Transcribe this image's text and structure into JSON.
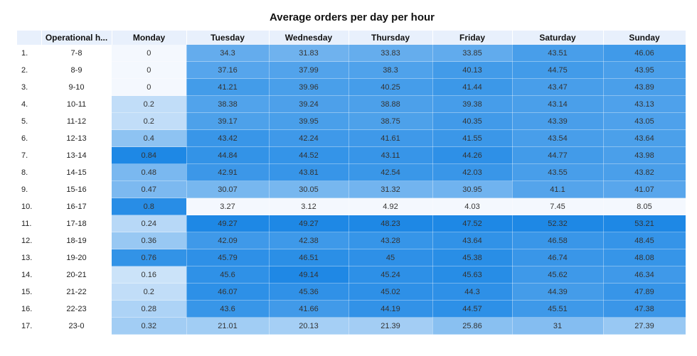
{
  "title": "Average orders per day per hour",
  "chart_data": {
    "type": "heatmap",
    "title": "Average orders per day per hour",
    "index_column": "",
    "row_label_column": "Operational h...",
    "columns": [
      "Monday",
      "Tuesday",
      "Wednesday",
      "Thursday",
      "Friday",
      "Saturday",
      "Sunday"
    ],
    "rows": [
      {
        "index": "1.",
        "hour": "7-8",
        "values": [
          "0",
          "34.3",
          "31.83",
          "33.83",
          "33.85",
          "43.51",
          "46.06"
        ]
      },
      {
        "index": "2.",
        "hour": "8-9",
        "values": [
          "0",
          "37.16",
          "37.99",
          "38.3",
          "40.13",
          "44.75",
          "43.95"
        ]
      },
      {
        "index": "3.",
        "hour": "9-10",
        "values": [
          "0",
          "41.21",
          "39.96",
          "40.25",
          "41.44",
          "43.47",
          "43.89"
        ]
      },
      {
        "index": "4.",
        "hour": "10-11",
        "values": [
          "0.2",
          "38.38",
          "39.24",
          "38.88",
          "39.38",
          "43.14",
          "43.13"
        ]
      },
      {
        "index": "5.",
        "hour": "11-12",
        "values": [
          "0.2",
          "39.17",
          "39.95",
          "38.75",
          "40.35",
          "43.39",
          "43.05"
        ]
      },
      {
        "index": "6.",
        "hour": "12-13",
        "values": [
          "0.4",
          "43.42",
          "42.24",
          "41.61",
          "41.55",
          "43.54",
          "43.64"
        ]
      },
      {
        "index": "7.",
        "hour": "13-14",
        "values": [
          "0.84",
          "44.84",
          "44.52",
          "43.11",
          "44.26",
          "44.77",
          "43.98"
        ]
      },
      {
        "index": "8.",
        "hour": "14-15",
        "values": [
          "0.48",
          "42.91",
          "43.81",
          "42.54",
          "42.03",
          "43.55",
          "43.82"
        ]
      },
      {
        "index": "9.",
        "hour": "15-16",
        "values": [
          "0.47",
          "30.07",
          "30.05",
          "31.32",
          "30.95",
          "41.1",
          "41.07"
        ]
      },
      {
        "index": "10.",
        "hour": "16-17",
        "values": [
          "0.8",
          "3.27",
          "3.12",
          "4.92",
          "4.03",
          "7.45",
          "8.05"
        ]
      },
      {
        "index": "11.",
        "hour": "17-18",
        "values": [
          "0.24",
          "49.27",
          "49.27",
          "48.23",
          "47.52",
          "52.32",
          "53.21"
        ]
      },
      {
        "index": "12.",
        "hour": "18-19",
        "values": [
          "0.36",
          "42.09",
          "42.38",
          "43.28",
          "43.64",
          "46.58",
          "48.45"
        ]
      },
      {
        "index": "13.",
        "hour": "19-20",
        "values": [
          "0.76",
          "45.79",
          "46.51",
          "45",
          "45.38",
          "46.74",
          "48.08"
        ]
      },
      {
        "index": "14.",
        "hour": "20-21",
        "values": [
          "0.16",
          "45.6",
          "49.14",
          "45.24",
          "45.63",
          "45.62",
          "46.34"
        ]
      },
      {
        "index": "15.",
        "hour": "21-22",
        "values": [
          "0.2",
          "46.07",
          "45.36",
          "45.02",
          "44.3",
          "44.39",
          "47.89"
        ]
      },
      {
        "index": "16.",
        "hour": "22-23",
        "values": [
          "0.28",
          "43.6",
          "41.66",
          "44.19",
          "44.57",
          "45.51",
          "47.38"
        ]
      },
      {
        "index": "17.",
        "hour": "23-0",
        "values": [
          "0.32",
          "21.01",
          "20.13",
          "21.39",
          "25.86",
          "31",
          "27.39"
        ]
      }
    ],
    "color_scale": {
      "low": "#f4f8fe",
      "high": "#1e88e5",
      "scaling": "per-column"
    }
  }
}
